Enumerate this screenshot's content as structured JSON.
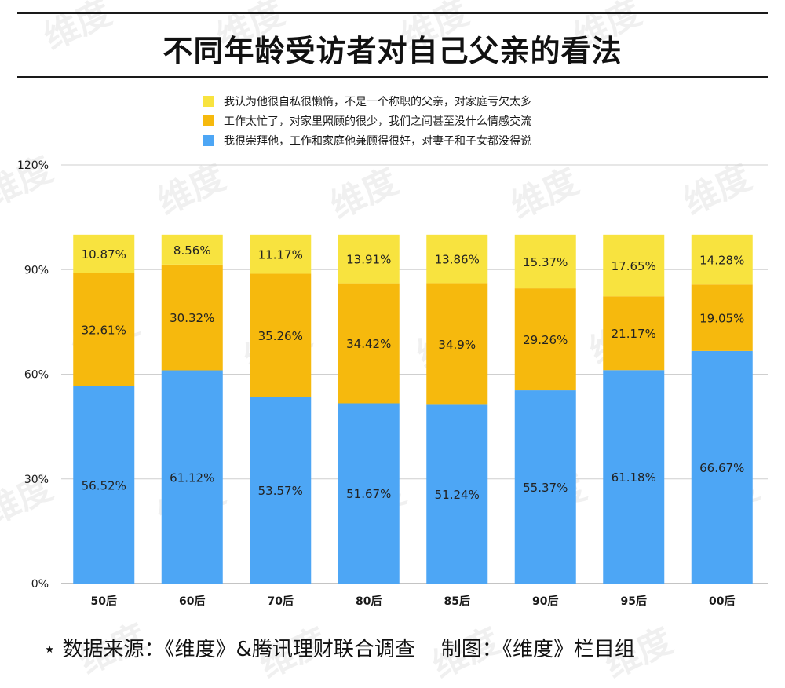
{
  "title": "不同年龄受访者对自己父亲的看法",
  "footer": "⋆ 数据来源：《维度》&腾讯理财联合调查    制图：《维度》栏目组",
  "watermark": "维度",
  "colors": {
    "blue": "#4da6f5",
    "orange": "#f6b90d",
    "yellow": "#f8e33f",
    "grid": "#cfcfcf",
    "text": "#1a1a1a"
  },
  "chart_data": {
    "type": "bar",
    "stacked": true,
    "categories": [
      "50后",
      "60后",
      "70后",
      "80后",
      "85后",
      "90后",
      "95后",
      "00后"
    ],
    "series": [
      {
        "name": "我很崇拜他，工作和家庭他兼顾得很好，对妻子和子女都没得说",
        "color": "#4da6f5",
        "values": [
          56.52,
          61.12,
          53.57,
          51.67,
          51.24,
          55.37,
          61.18,
          66.67
        ],
        "labels": [
          "56.52%",
          "61.12%",
          "53.57%",
          "51.67%",
          "51.24%",
          "55.37%",
          "61.18%",
          "66.67%"
        ]
      },
      {
        "name": "工作太忙了，对家里照顾的很少，我们之间甚至没什么情感交流",
        "color": "#f6b90d",
        "values": [
          32.61,
          30.32,
          35.26,
          34.42,
          34.9,
          29.26,
          21.17,
          19.05
        ],
        "labels": [
          "32.61%",
          "30.32%",
          "35.26%",
          "34.42%",
          "34.9%",
          "29.26%",
          "21.17%",
          "19.05%"
        ]
      },
      {
        "name": "我认为他很自私很懒惰，不是一个称职的父亲，对家庭亏欠太多",
        "color": "#f8e33f",
        "values": [
          10.87,
          8.56,
          11.17,
          13.91,
          13.86,
          15.37,
          17.65,
          14.28
        ],
        "labels": [
          "10.87%",
          "8.56%",
          "11.17%",
          "13.91%",
          "13.86%",
          "15.37%",
          "17.65%",
          "14.28%"
        ]
      }
    ],
    "legend_order": [
      2,
      1,
      0
    ],
    "legend_position": "top-center",
    "ylim": [
      0,
      120
    ],
    "yticks": [
      0,
      30,
      60,
      90,
      120
    ],
    "ytick_labels": [
      "0%",
      "30%",
      "60%",
      "90%",
      "120%"
    ],
    "grid": true
  }
}
